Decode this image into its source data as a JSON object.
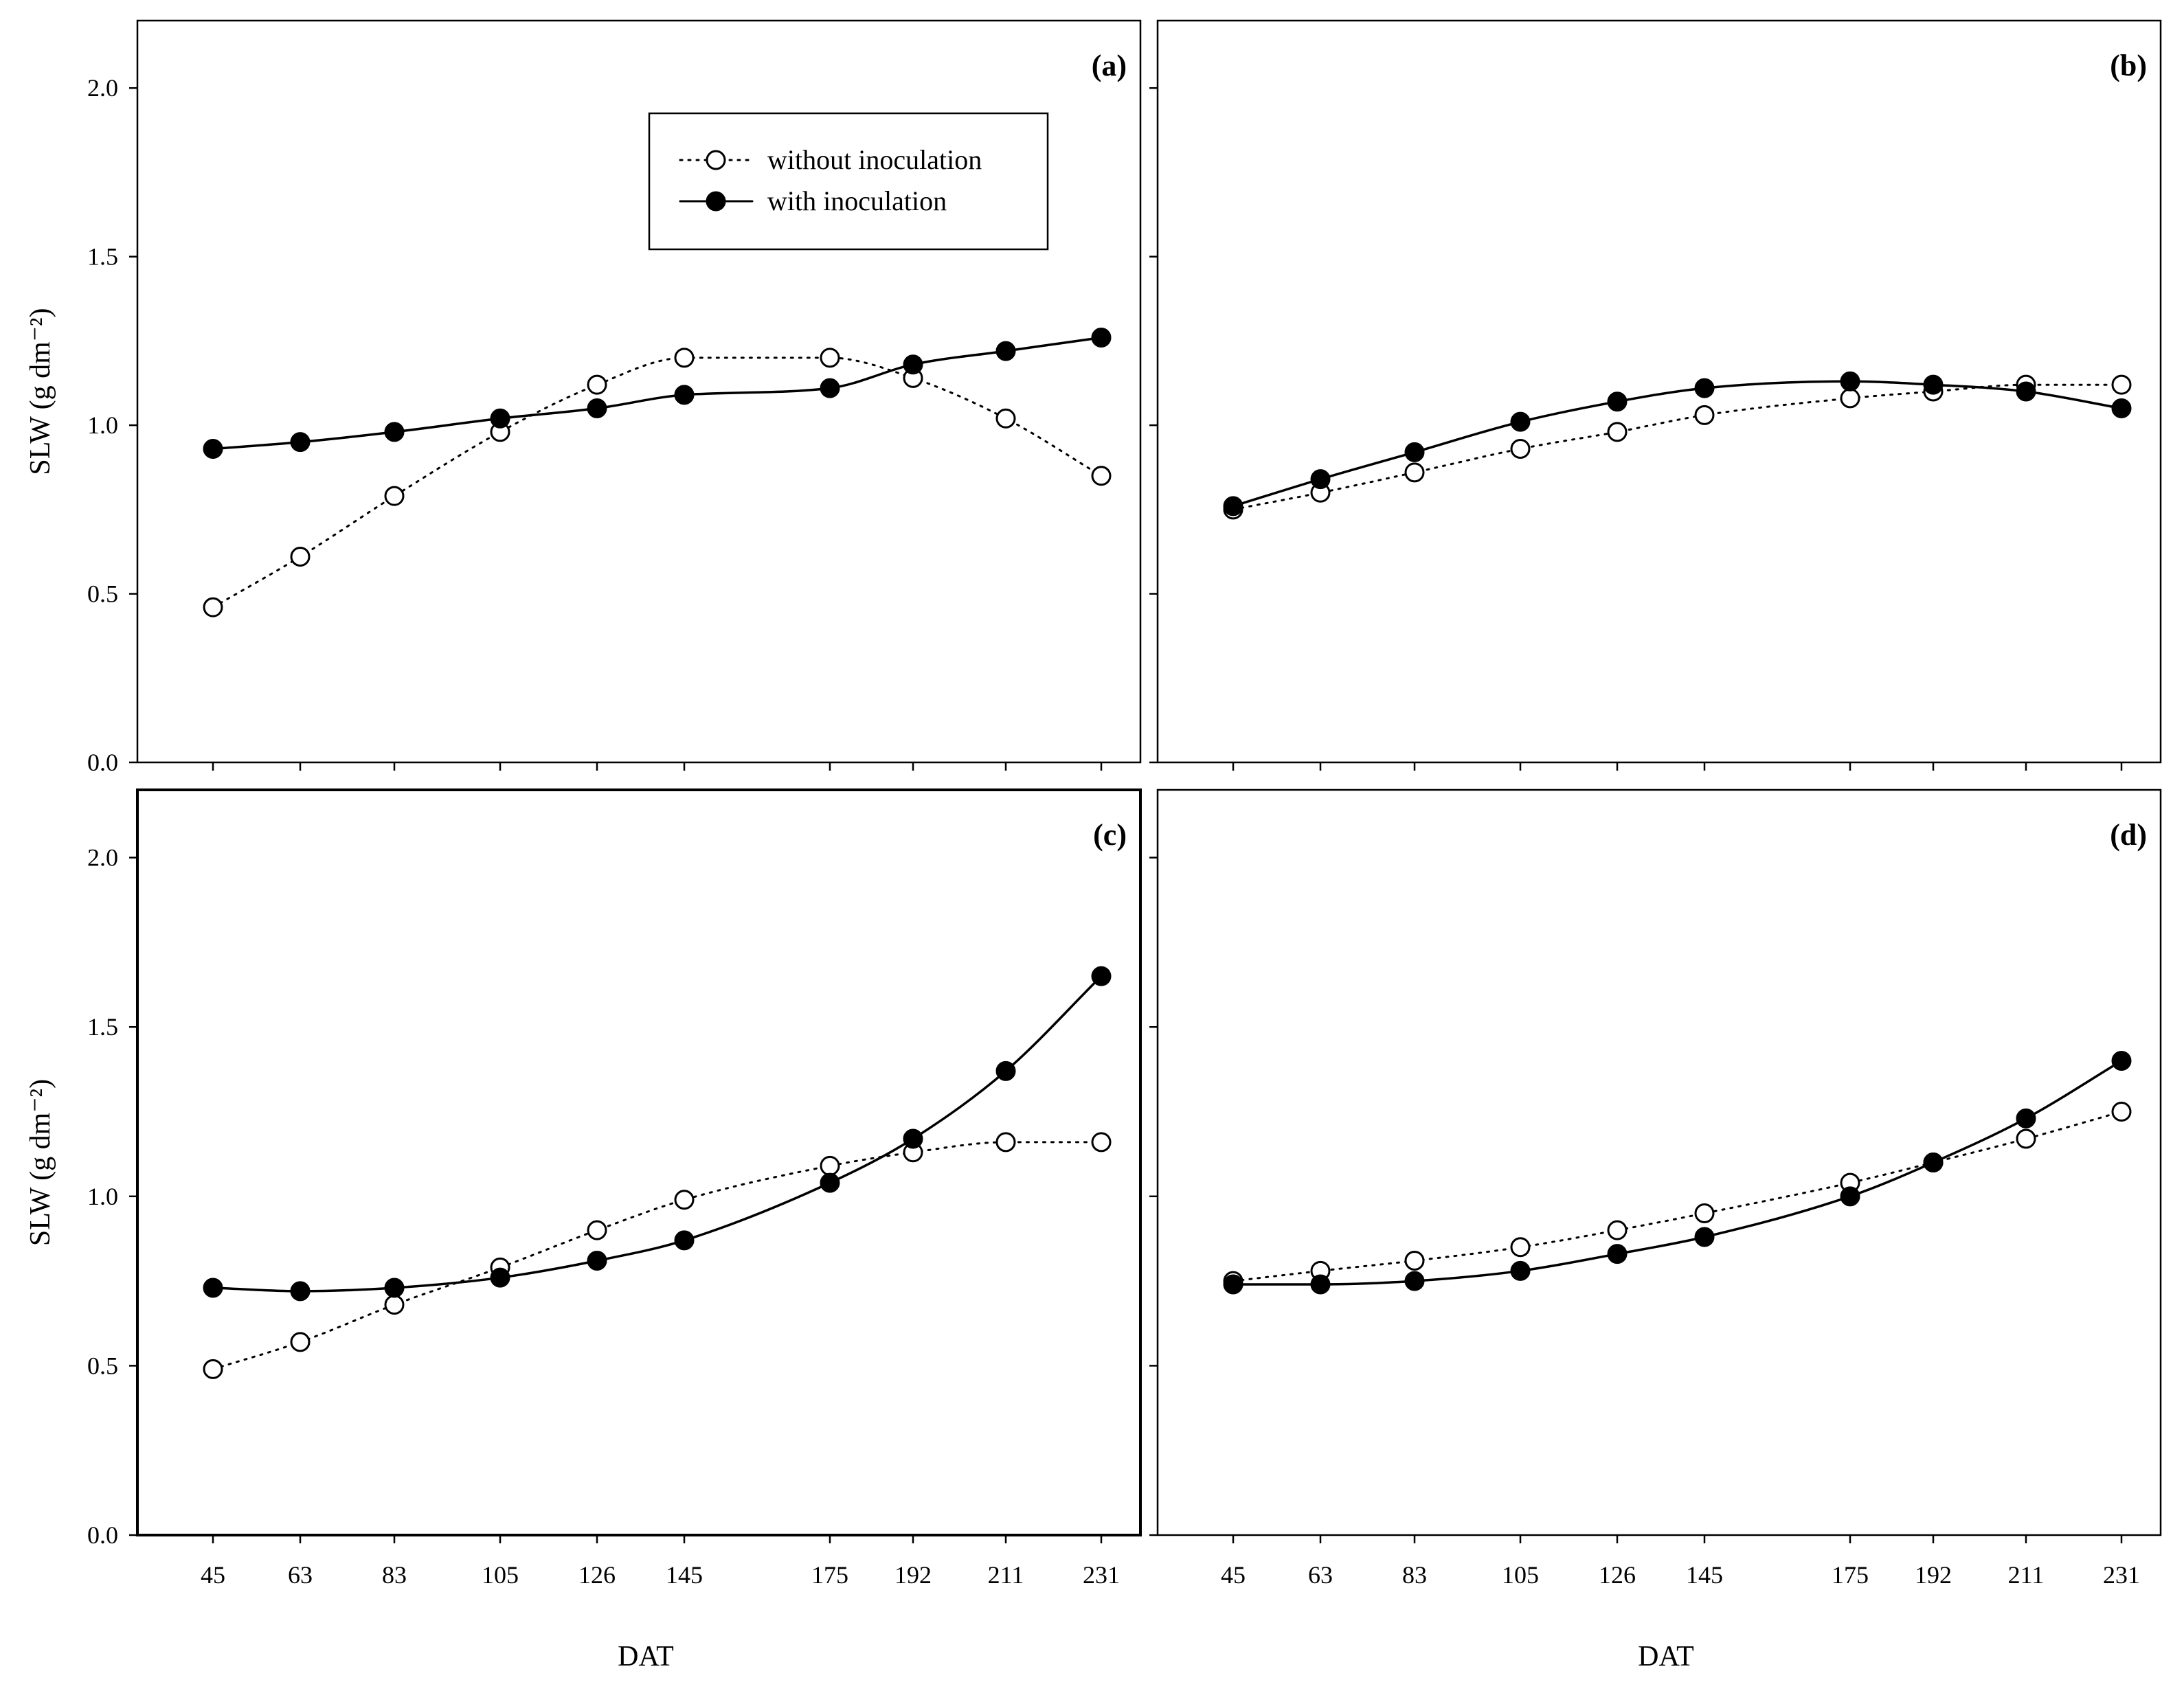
{
  "chart_data": [
    {
      "type": "line",
      "panel_label": "(a)",
      "x": [
        45,
        63,
        83,
        105,
        126,
        145,
        175,
        192,
        211,
        231
      ],
      "xlabel": "",
      "ylabel": "SLW (g dm⁻²)",
      "ylim": [
        0,
        2.2
      ],
      "yticks": [
        "0.0",
        "0.5",
        "1.0",
        "1.5",
        "2.0"
      ],
      "legend": "top-center",
      "series": [
        {
          "name": "without inoculation",
          "style": "dotted-open-circle",
          "values": [
            0.46,
            0.61,
            0.79,
            0.98,
            1.12,
            1.2,
            1.2,
            1.14,
            1.02,
            0.85
          ]
        },
        {
          "name": "with inoculation",
          "style": "solid-filled-circle",
          "values": [
            0.93,
            0.95,
            0.98,
            1.02,
            1.05,
            1.09,
            1.11,
            1.18,
            1.22,
            1.26
          ]
        }
      ]
    },
    {
      "type": "line",
      "panel_label": "(b)",
      "x": [
        45,
        63,
        83,
        105,
        126,
        145,
        175,
        192,
        211,
        231
      ],
      "xlabel": "",
      "ylabel": "",
      "ylim": [
        0,
        2.2
      ],
      "series": [
        {
          "style": "dotted-open-circle",
          "values": [
            0.75,
            0.8,
            0.86,
            0.93,
            0.98,
            1.03,
            1.08,
            1.1,
            1.12,
            1.12
          ]
        },
        {
          "style": "solid-filled-circle",
          "values": [
            0.76,
            0.84,
            0.92,
            1.01,
            1.07,
            1.11,
            1.13,
            1.12,
            1.1,
            1.05
          ]
        }
      ]
    },
    {
      "type": "line",
      "panel_label": "(c)",
      "x": [
        45,
        63,
        83,
        105,
        126,
        145,
        175,
        192,
        211,
        231
      ],
      "xticks": [
        "45",
        "63",
        "83",
        "105",
        "126",
        "145",
        "175",
        "192",
        "211",
        "231"
      ],
      "xlabel": "DAT",
      "ylabel": "SLW (g dm⁻²)",
      "ylim": [
        0,
        2.2
      ],
      "yticks": [
        "0.0",
        "0.5",
        "1.0",
        "1.5",
        "2.0"
      ],
      "series": [
        {
          "style": "dotted-open-circle",
          "values": [
            0.49,
            0.57,
            0.68,
            0.79,
            0.9,
            0.99,
            1.09,
            1.13,
            1.16,
            1.16
          ]
        },
        {
          "style": "solid-filled-circle",
          "values": [
            0.73,
            0.72,
            0.73,
            0.76,
            0.81,
            0.87,
            1.04,
            1.17,
            1.37,
            1.65
          ]
        }
      ]
    },
    {
      "type": "line",
      "panel_label": "(d)",
      "x": [
        45,
        63,
        83,
        105,
        126,
        145,
        175,
        192,
        211,
        231
      ],
      "xticks": [
        "45",
        "63",
        "83",
        "105",
        "126",
        "145",
        "175",
        "192",
        "211",
        "231"
      ],
      "xlabel": "DAT",
      "ylabel": "",
      "ylim": [
        0,
        2.2
      ],
      "series": [
        {
          "style": "dotted-open-circle",
          "values": [
            0.75,
            0.78,
            0.81,
            0.85,
            0.9,
            0.95,
            1.04,
            1.1,
            1.17,
            1.25
          ]
        },
        {
          "style": "solid-filled-circle",
          "values": [
            0.74,
            0.74,
            0.75,
            0.78,
            0.83,
            0.88,
            1.0,
            1.1,
            1.23,
            1.4
          ]
        }
      ]
    }
  ]
}
